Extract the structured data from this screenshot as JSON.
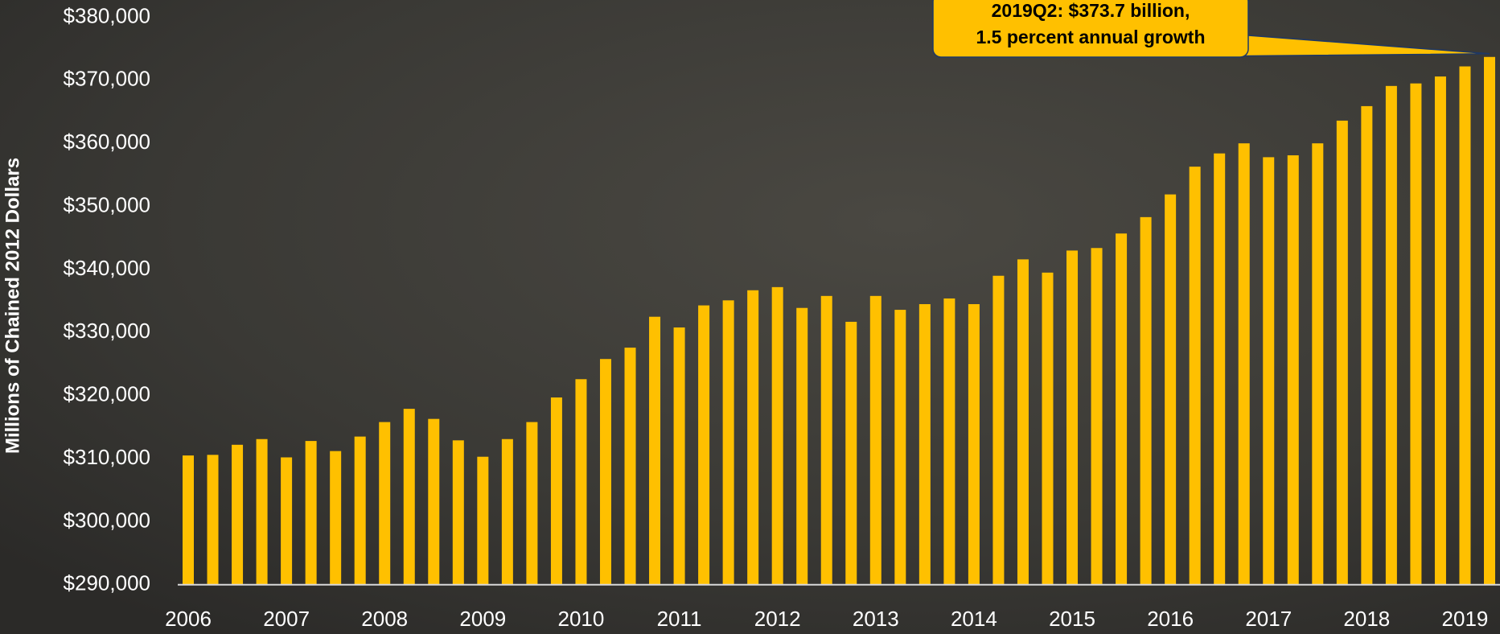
{
  "chart_data": {
    "type": "bar",
    "y_label": "Millions of Chained 2012 Dollars",
    "annotation": [
      "2019Q2: $373.7 billion,",
      "1.5 percent annual growth"
    ],
    "categories": [
      "2006",
      null,
      null,
      null,
      "2007",
      null,
      null,
      null,
      "2008",
      null,
      null,
      null,
      "2009",
      null,
      null,
      null,
      "2010",
      null,
      null,
      null,
      "2011",
      null,
      null,
      null,
      "2012",
      null,
      null,
      null,
      "2013",
      null,
      null,
      null,
      "2014",
      null,
      null,
      null,
      "2015",
      null,
      null,
      null,
      "2016",
      null,
      null,
      null,
      "2017",
      null,
      null,
      null,
      "2018",
      null,
      null,
      null,
      "2019",
      null
    ],
    "values": [
      310500,
      310600,
      312200,
      313100,
      310200,
      312800,
      311200,
      313500,
      315800,
      317900,
      316300,
      312900,
      310300,
      313100,
      315800,
      319700,
      322600,
      325800,
      327600,
      332500,
      330800,
      334300,
      335100,
      336700,
      337200,
      333900,
      335800,
      331700,
      335800,
      333600,
      334500,
      335400,
      334500,
      339000,
      341600,
      339500,
      343000,
      343400,
      345700,
      348300,
      351900,
      356300,
      358400,
      360000,
      357800,
      358100,
      360000,
      363600,
      365900,
      369100,
      369500,
      370600,
      372200,
      373700
    ],
    "color": "#ffc000",
    "ylim": [
      290000,
      380000
    ],
    "yticks": [
      {
        "value": 290000,
        "label": "$290,000"
      },
      {
        "value": 300000,
        "label": "$300,000"
      },
      {
        "value": 310000,
        "label": "$310,000"
      },
      {
        "value": 320000,
        "label": "$320,000"
      },
      {
        "value": 330000,
        "label": "$330,000"
      },
      {
        "value": 340000,
        "label": "$340,000"
      },
      {
        "value": 350000,
        "label": "$350,000"
      },
      {
        "value": 360000,
        "label": "$360,000"
      },
      {
        "value": 370000,
        "label": "$370,000"
      },
      {
        "value": 380000,
        "label": "$380,000"
      }
    ],
    "grid": false
  }
}
